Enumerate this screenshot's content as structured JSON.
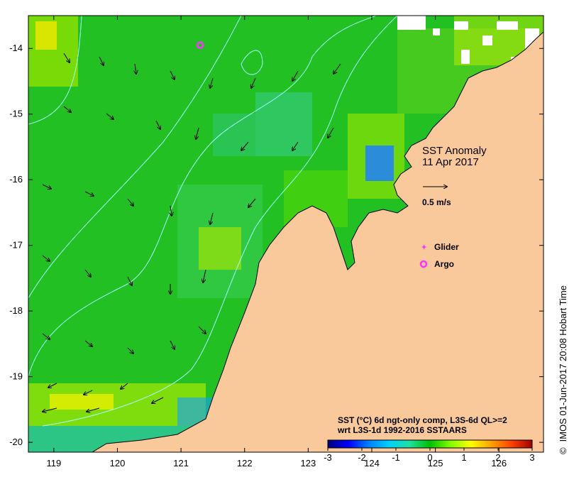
{
  "map": {
    "title_line1": "SST Anomaly",
    "title_line2": "11 Apr 2017",
    "lon_ticks": [
      "119",
      "120",
      "121",
      "122",
      "123",
      "124",
      "125",
      "126"
    ],
    "lat_ticks": [
      "-14",
      "-15",
      "-16",
      "-17",
      "-18",
      "-19",
      "-20"
    ],
    "lon_range": [
      118.6,
      126.7
    ],
    "lat_range": [
      -20.15,
      -13.5
    ],
    "land_color": "#f9c89b",
    "ocean_base_color": "#22c022",
    "coast_color": "#000000"
  },
  "scale_arrow": {
    "label": "0.5 m/s",
    "speed_ms": 0.5
  },
  "legend": {
    "glider_label": "Glider",
    "argo_label": "Argo",
    "glider_color": "#ff33ff",
    "argo_color": "#ff33ff"
  },
  "argo_float": {
    "lon": 121.3,
    "lat": -13.95
  },
  "colorbar": {
    "line1": "SST (°C) 6d ngt-only comp, L3S-6d QL>=2",
    "line2": "wrt L3S-1d 1992-2016 SSTAARS",
    "ticks": [
      "-3",
      "-2",
      "-1",
      "0",
      "1",
      "2",
      "3"
    ],
    "range": [
      -3,
      3
    ],
    "colors": [
      "#00007f",
      "#0000ff",
      "#0080ff",
      "#00d0ff",
      "#20e0a0",
      "#00c000",
      "#80ff00",
      "#ffff00",
      "#ffa000",
      "#ff4000",
      "#a00000"
    ]
  },
  "credit": {
    "copyright": "©",
    "text": "IMOS 01-Jun-2017 20:08 Hobart Time"
  }
}
